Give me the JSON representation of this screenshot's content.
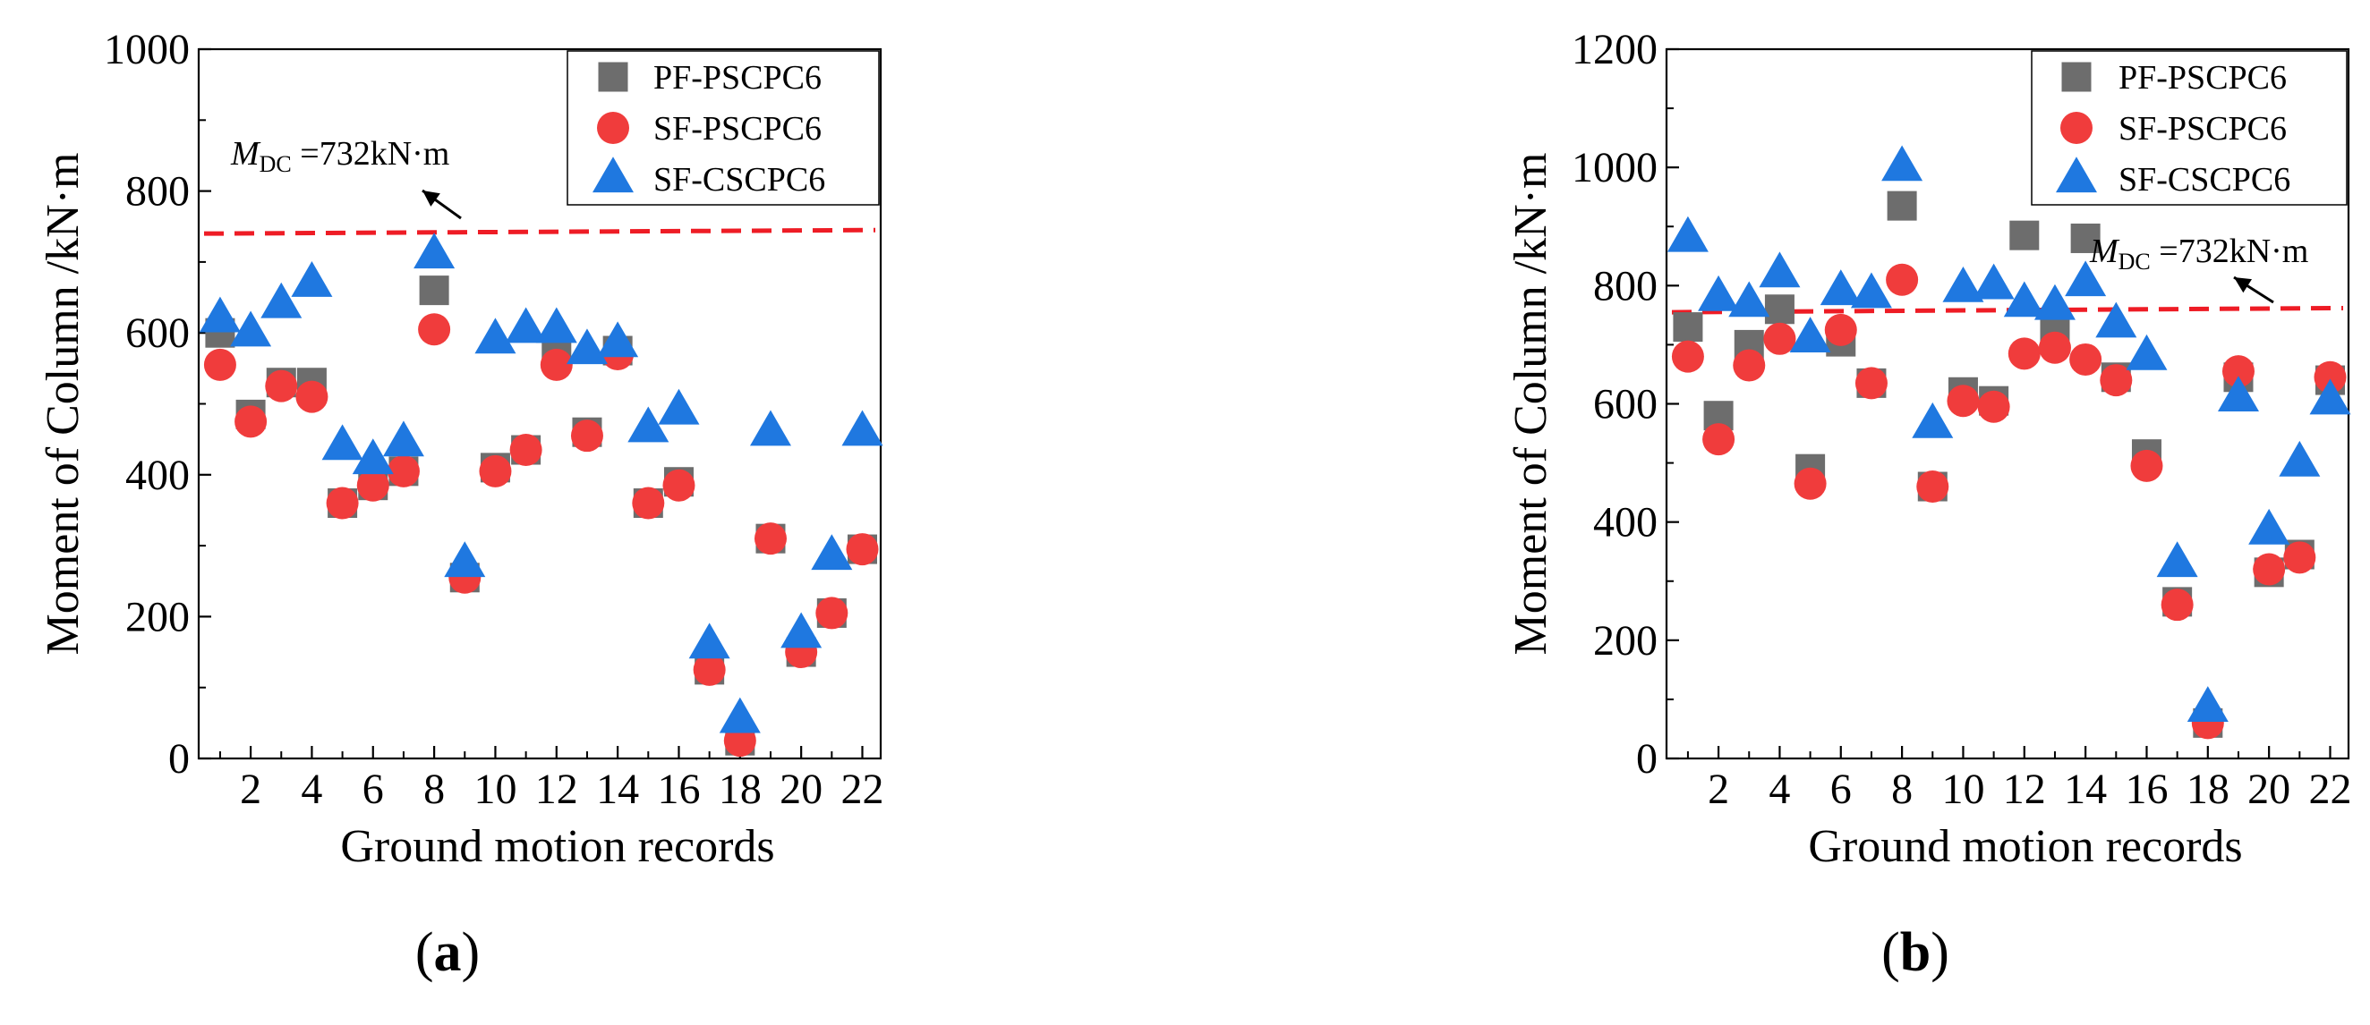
{
  "figure": {
    "panels": [
      {
        "label_open": "(",
        "label_letter": "a",
        "label_close": ")"
      },
      {
        "label_open": "(",
        "label_letter": "b",
        "label_close": ")"
      }
    ]
  },
  "chart_data": [
    {
      "type": "scatter",
      "title": "",
      "xlabel": "Ground motion records",
      "ylabel": "Moment of Column /kN·m",
      "xlim": [
        0.3,
        22.6
      ],
      "ylim": [
        0,
        1000
      ],
      "xticks": [
        2,
        4,
        6,
        8,
        10,
        12,
        14,
        16,
        18,
        20,
        22
      ],
      "yticks": [
        0,
        200,
        400,
        600,
        800,
        1000
      ],
      "legend_position": "top-right",
      "grid": false,
      "reference_line": {
        "symbol": "M",
        "subscript": "DC",
        "value_text": " =732kN·m",
        "y_start": 740,
        "y_end": 745,
        "color": "#ee1c25",
        "style": "dashed"
      },
      "x": [
        1,
        2,
        3,
        4,
        5,
        6,
        7,
        8,
        9,
        10,
        11,
        12,
        13,
        14,
        15,
        16,
        17,
        18,
        19,
        20,
        21,
        22
      ],
      "series": [
        {
          "name": "PF-PSCPC6",
          "marker": "square",
          "color": "#6d6d6d",
          "values": [
            600,
            485,
            530,
            530,
            360,
            385,
            405,
            660,
            255,
            410,
            435,
            575,
            460,
            575,
            360,
            390,
            125,
            25,
            310,
            150,
            205,
            295
          ]
        },
        {
          "name": "SF-PSCPC6",
          "marker": "circle",
          "color": "#f03c3c",
          "values": [
            555,
            475,
            525,
            510,
            360,
            385,
            405,
            605,
            255,
            405,
            435,
            555,
            455,
            570,
            360,
            385,
            125,
            25,
            310,
            150,
            205,
            295
          ]
        },
        {
          "name": "SF-CSCPC6",
          "marker": "triangle",
          "color": "#1f78e0",
          "values": [
            620,
            600,
            640,
            670,
            440,
            420,
            445,
            710,
            275,
            590,
            605,
            605,
            575,
            585,
            465,
            490,
            160,
            55,
            460,
            175,
            285,
            460
          ]
        }
      ]
    },
    {
      "type": "scatter",
      "title": "",
      "xlabel": "Ground motion records",
      "ylabel": "Moment of Column /kN·m",
      "xlim": [
        0.3,
        22.6
      ],
      "ylim": [
        0,
        1200
      ],
      "xticks": [
        2,
        4,
        6,
        8,
        10,
        12,
        14,
        16,
        18,
        20,
        22
      ],
      "yticks": [
        0,
        200,
        400,
        600,
        800,
        1000,
        1200
      ],
      "legend_position": "top-right",
      "grid": false,
      "reference_line": {
        "symbol": "M",
        "subscript": "DC",
        "value_text": " =732kN·m",
        "y_start": 755,
        "y_end": 762,
        "color": "#ee1c25",
        "style": "dashed"
      },
      "x": [
        1,
        2,
        3,
        4,
        5,
        6,
        7,
        8,
        9,
        10,
        11,
        12,
        13,
        14,
        15,
        16,
        17,
        18,
        19,
        20,
        21,
        22
      ],
      "series": [
        {
          "name": "PF-PSCPC6",
          "marker": "square",
          "color": "#6d6d6d",
          "values": [
            730,
            580,
            700,
            760,
            490,
            705,
            635,
            935,
            460,
            620,
            605,
            885,
            725,
            880,
            645,
            515,
            265,
            60,
            645,
            315,
            345,
            640
          ]
        },
        {
          "name": "SF-PSCPC6",
          "marker": "circle",
          "color": "#f03c3c",
          "values": [
            680,
            540,
            665,
            710,
            465,
            725,
            635,
            810,
            460,
            605,
            595,
            685,
            695,
            675,
            640,
            495,
            260,
            60,
            655,
            320,
            340,
            645
          ]
        },
        {
          "name": "SF-CSCPC6",
          "marker": "triangle",
          "color": "#1f78e0",
          "values": [
            880,
            780,
            770,
            820,
            710,
            790,
            785,
            1000,
            565,
            795,
            800,
            770,
            765,
            805,
            735,
            680,
            330,
            85,
            610,
            385,
            500,
            605
          ]
        }
      ]
    }
  ]
}
